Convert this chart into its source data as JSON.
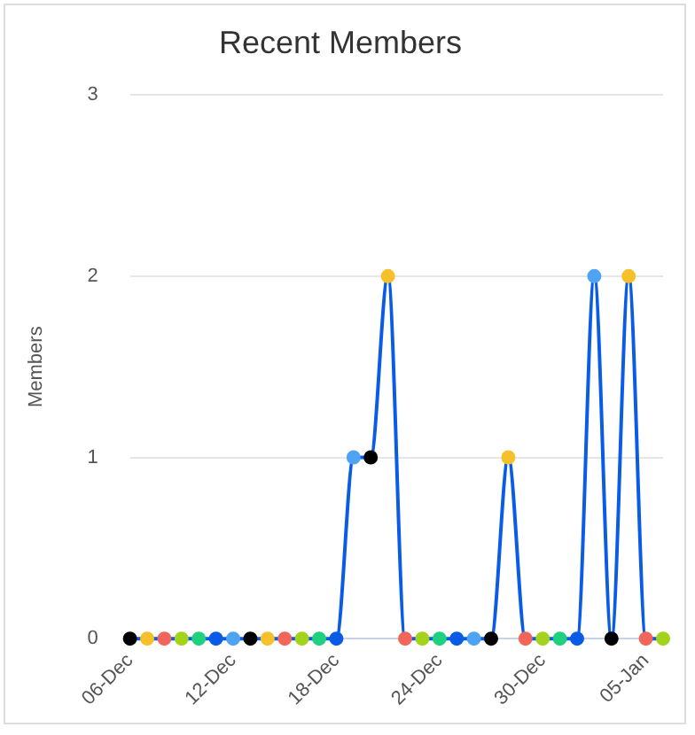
{
  "chart_data": {
    "type": "line",
    "title": "Recent Members",
    "ylabel": "Members",
    "categories": [
      "06-Dec",
      null,
      null,
      null,
      null,
      null,
      "12-Dec",
      null,
      null,
      null,
      null,
      null,
      "18-Dec",
      null,
      null,
      null,
      null,
      null,
      "24-Dec",
      null,
      null,
      null,
      null,
      null,
      "30-Dec",
      null,
      null,
      null,
      null,
      null,
      "05-Jan",
      null
    ],
    "series": [
      {
        "color": "#0a5ce6",
        "values": [
          0,
          0,
          0,
          0,
          0,
          0,
          0,
          0,
          0,
          0,
          0,
          0,
          0,
          1,
          1,
          2,
          0,
          0,
          0,
          0,
          0,
          0,
          1,
          0,
          0,
          0,
          0,
          2,
          0,
          2,
          0,
          0
        ],
        "colors": [
          "#000000",
          "#f5c02a",
          "#f2655a",
          "#a3d31a",
          "#1fd17f",
          "#0a5ce6",
          "#4ea3f2",
          "#000000",
          "#f5c02a",
          "#f2655a",
          "#a3d31a",
          "#1fd17f",
          "#0a5ce6",
          "#4ea3f2",
          "#000000",
          "#f5c02a",
          "#f2655a",
          "#a3d31a",
          "#1fd17f",
          "#0a5ce6",
          "#4ea3f2",
          "#000000",
          "#f5c02a",
          "#f2655a",
          "#a3d31a",
          "#1fd17f",
          "#0a5ce6",
          "#4ea3f2",
          "#000000",
          "#f5c02a",
          "#f2655a",
          "#a3d31a"
        ]
      }
    ],
    "ylim": [
      0,
      3
    ],
    "yticks": [
      0,
      1,
      2,
      3
    ],
    "grid": "y",
    "marker": "circle",
    "legend": false
  }
}
